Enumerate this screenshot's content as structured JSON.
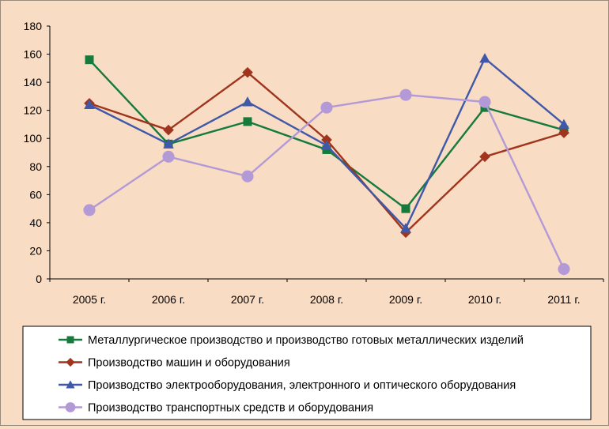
{
  "chart_data": {
    "type": "line",
    "categories": [
      "2005 г.",
      "2006 г.",
      "2007 г.",
      "2008 г.",
      "2009 г.",
      "2010 г.",
      "2011 г."
    ],
    "ylim": [
      0,
      180
    ],
    "yticks": [
      0,
      20,
      40,
      60,
      80,
      100,
      120,
      140,
      160,
      180
    ],
    "grid": false,
    "legend_position": "bottom",
    "series": [
      {
        "name": "Металлургическое производство и производство готовых металлических изделий",
        "color": "#157a3c",
        "marker": "square",
        "values": [
          156,
          96,
          112,
          92,
          50,
          122,
          106
        ]
      },
      {
        "name": "Производство машин и оборудования",
        "color": "#a0341c",
        "marker": "diamond",
        "values": [
          125,
          106,
          147,
          99,
          33,
          87,
          104
        ]
      },
      {
        "name": "Производство электрооборудования, электронного и оптического оборудования",
        "color": "#3f58a8",
        "marker": "triangle",
        "values": [
          124,
          96,
          126,
          95,
          36,
          157,
          110
        ]
      },
      {
        "name": "Производство транспортных средств и оборудования",
        "color": "#b39ad6",
        "marker": "circle",
        "values": [
          49,
          87,
          73,
          122,
          131,
          126,
          7
        ]
      }
    ]
  }
}
